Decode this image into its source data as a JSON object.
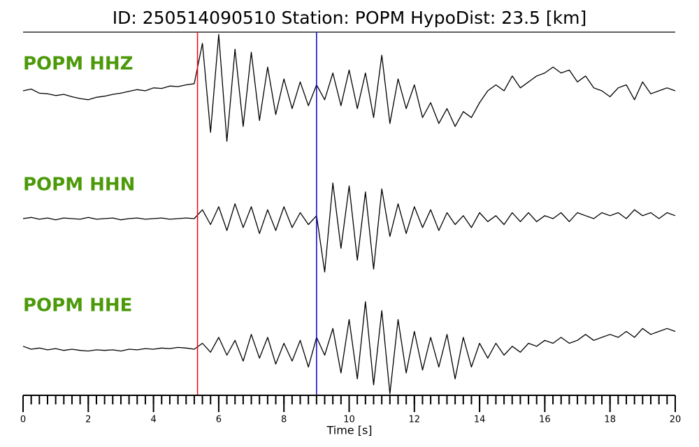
{
  "chart_data": {
    "type": "seismogram",
    "title": "ID: 250514090510   Station: POPM   HypoDist:    23.5 [km]",
    "xlabel": "Time [s]",
    "xlim": [
      0,
      20
    ],
    "xticks": [
      0,
      2,
      4,
      6,
      8,
      10,
      12,
      14,
      16,
      18,
      20
    ],
    "xminorticks": [
      0,
      0.25,
      0.5,
      0.75,
      1,
      1.25,
      1.5,
      1.75,
      2,
      2.25,
      2.5,
      2.75,
      3,
      3.25,
      3.5,
      3.75,
      4,
      4.25,
      4.5,
      4.75,
      5,
      5.25,
      5.5,
      5.75,
      6,
      6.25,
      6.5,
      6.75,
      7,
      7.25,
      7.5,
      7.75,
      8,
      8.25,
      8.5,
      8.75,
      9,
      9.25,
      9.5,
      9.75,
      10,
      10.25,
      10.5,
      10.75,
      11,
      11.25,
      11.5,
      11.75,
      12,
      12.25,
      12.5,
      12.75,
      13,
      13.25,
      13.5,
      13.75,
      14,
      14.25,
      14.5,
      14.75,
      15,
      15.25,
      15.5,
      15.75,
      16,
      16.25,
      16.5,
      16.75,
      17,
      17.25,
      17.5,
      17.75,
      18,
      18.25,
      18.5,
      18.75,
      19,
      19.25,
      19.5,
      19.75,
      20
    ],
    "x": [
      0,
      0.25,
      0.5,
      0.75,
      1,
      1.25,
      1.5,
      1.75,
      2,
      2.25,
      2.5,
      2.75,
      3,
      3.25,
      3.5,
      3.75,
      4,
      4.25,
      4.5,
      4.75,
      5,
      5.25,
      5.5,
      5.75,
      6,
      6.25,
      6.5,
      6.75,
      7,
      7.25,
      7.5,
      7.75,
      8,
      8.25,
      8.5,
      8.75,
      9,
      9.25,
      9.5,
      9.75,
      10,
      10.25,
      10.5,
      10.75,
      11,
      11.25,
      11.5,
      11.75,
      12,
      12.25,
      12.5,
      12.75,
      13,
      13.25,
      13.5,
      13.75,
      14,
      14.25,
      14.5,
      14.75,
      15,
      15.25,
      15.5,
      15.75,
      16,
      16.25,
      16.5,
      16.75,
      17,
      17.25,
      17.5,
      17.75,
      18,
      18.25,
      18.5,
      18.75,
      19,
      19.25,
      19.5,
      19.75,
      20
    ],
    "label_color": "#4c9a0a",
    "trace_color": "#000000",
    "series": [
      {
        "name": "POPM HHZ",
        "values": [
          0,
          0.03,
          -0.04,
          -0.05,
          -0.08,
          -0.06,
          -0.1,
          -0.13,
          -0.15,
          -0.11,
          -0.09,
          -0.06,
          -0.04,
          -0.01,
          0.02,
          0.0,
          0.05,
          0.04,
          0.08,
          0.07,
          0.1,
          0.12,
          0.8,
          -0.7,
          0.95,
          -0.85,
          0.7,
          -0.6,
          0.65,
          -0.5,
          0.4,
          -0.4,
          0.2,
          -0.3,
          0.15,
          -0.25,
          0.1,
          -0.15,
          0.3,
          -0.25,
          0.35,
          -0.3,
          0.3,
          -0.45,
          0.6,
          -0.55,
          0.2,
          -0.3,
          0.1,
          -0.45,
          -0.2,
          -0.55,
          -0.3,
          -0.6,
          -0.35,
          -0.45,
          -0.2,
          0.0,
          0.1,
          0.0,
          0.25,
          0.05,
          0.15,
          0.25,
          0.3,
          0.4,
          0.3,
          0.35,
          0.15,
          0.25,
          0.05,
          0.0,
          -0.1,
          0.05,
          0.1,
          -0.15,
          0.15,
          -0.05,
          0.0,
          0.05,
          0.0
        ]
      },
      {
        "name": "POPM HHN",
        "values": [
          0,
          0.02,
          -0.01,
          0.01,
          -0.02,
          0.01,
          0,
          -0.01,
          0.02,
          -0.01,
          0,
          0.01,
          -0.02,
          0,
          0.01,
          -0.01,
          0,
          0.01,
          -0.01,
          0,
          0.01,
          0.0,
          0.15,
          -0.1,
          0.2,
          -0.2,
          0.25,
          -0.15,
          0.2,
          -0.25,
          0.15,
          -0.2,
          0.2,
          -0.15,
          0.1,
          -0.1,
          0.05,
          -0.9,
          0.6,
          -0.5,
          0.55,
          -0.7,
          0.45,
          -0.85,
          0.5,
          -0.3,
          0.25,
          -0.25,
          0.2,
          -0.15,
          0.15,
          -0.2,
          0.1,
          -0.1,
          0.05,
          -0.15,
          0.1,
          -0.05,
          0.05,
          -0.1,
          0.1,
          -0.05,
          0.1,
          -0.05,
          0.05,
          0.0,
          0.1,
          -0.05,
          0.1,
          0.05,
          0.0,
          0.1,
          0.05,
          0.1,
          0.0,
          0.15,
          0.05,
          0.1,
          0.0,
          0.1,
          0.05
        ]
      },
      {
        "name": "POPM HHE",
        "values": [
          0.05,
          0.0,
          0.02,
          -0.01,
          0.01,
          -0.02,
          0.0,
          -0.02,
          -0.03,
          -0.01,
          -0.02,
          -0.01,
          -0.03,
          0.0,
          -0.01,
          0.01,
          0.0,
          0.02,
          0.01,
          0.03,
          0.02,
          0.0,
          0.1,
          -0.05,
          0.2,
          -0.1,
          0.15,
          -0.2,
          0.25,
          -0.15,
          0.2,
          -0.25,
          0.1,
          -0.2,
          0.15,
          -0.3,
          0.2,
          -0.1,
          0.35,
          -0.4,
          0.5,
          -0.5,
          0.8,
          -0.6,
          0.65,
          -0.75,
          0.5,
          -0.4,
          0.3,
          -0.35,
          0.2,
          -0.3,
          0.25,
          -0.5,
          0.2,
          -0.3,
          0.1,
          -0.15,
          0.1,
          -0.1,
          0.05,
          -0.05,
          0.1,
          0.05,
          0.15,
          0.1,
          0.2,
          0.1,
          0.15,
          0.25,
          0.15,
          0.2,
          0.25,
          0.2,
          0.3,
          0.2,
          0.35,
          0.25,
          0.3,
          0.35,
          0.3
        ]
      }
    ],
    "picks": [
      {
        "time": 5.35,
        "color": "#ff0000"
      },
      {
        "time": 9.0,
        "color": "#0000cc"
      }
    ]
  }
}
